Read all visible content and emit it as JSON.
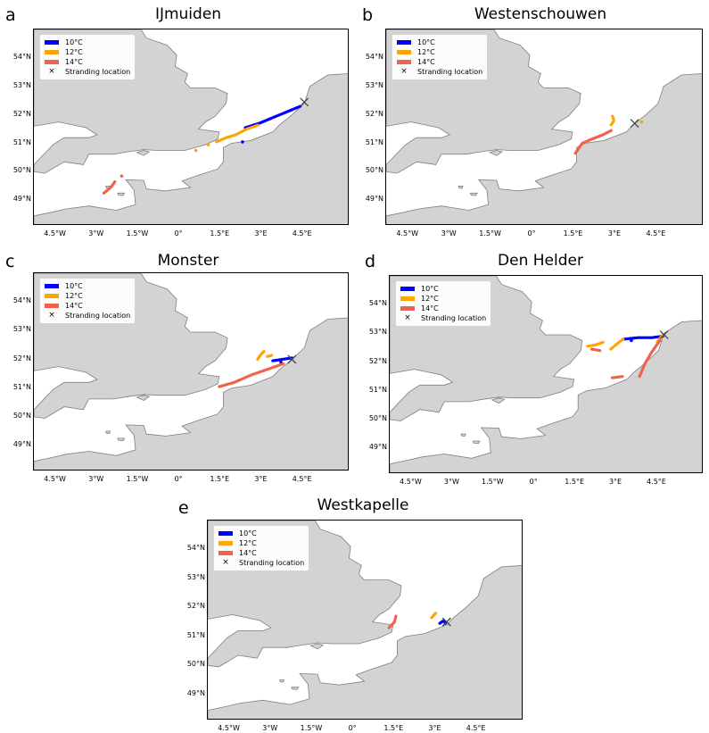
{
  "colors": {
    "land": "#d3d3d3",
    "sea": "#ffffff",
    "coast": "#7f7f7f",
    "c10": "#0000ff",
    "c12": "#ffa500",
    "c14": "#f0624c",
    "cross": "#444444"
  },
  "legend": {
    "t10": "10°C",
    "t12": "12°C",
    "t14": "14°C",
    "stranding": "Stranding location"
  },
  "axes": {
    "lon_labels": [
      "4.5°W",
      "3°W",
      "1.5°W",
      "0°",
      "1.5°E",
      "3°E",
      "4.5°E"
    ],
    "lat_labels": [
      "54°N",
      "53°N",
      "52°N",
      "51°N",
      "50°N",
      "49°N"
    ]
  },
  "panels": [
    {
      "letter": "a",
      "title": "IJmuiden",
      "stranding": {
        "lon": 4.55,
        "lat": 52.45
      },
      "particles": [
        {
          "temp": "10°C",
          "tracks": [
            [
              [
                2.4,
                51.55
              ],
              [
                2.9,
                51.7
              ],
              [
                3.4,
                51.9
              ],
              [
                3.9,
                52.1
              ],
              [
                4.4,
                52.3
              ]
            ]
          ],
          "blobs": [
            [
              2.3,
              51.05
            ]
          ]
        },
        {
          "temp": "12°C",
          "tracks": [
            [
              [
                1.35,
                51.05
              ],
              [
                1.7,
                51.2
              ],
              [
                2.05,
                51.3
              ],
              [
                2.45,
                51.5
              ],
              [
                2.9,
                51.65
              ]
            ]
          ],
          "blobs": [
            [
              1.05,
              50.95
            ],
            [
              0.6,
              50.75
            ]
          ]
        },
        {
          "temp": "14°C",
          "tracks": [
            [
              [
                -2.75,
                49.25
              ],
              [
                -2.5,
                49.45
              ],
              [
                -2.35,
                49.65
              ]
            ]
          ],
          "blobs": [
            [
              -2.1,
              49.85
            ]
          ]
        }
      ]
    },
    {
      "letter": "b",
      "title": "Westenschouwen",
      "stranding": {
        "lon": 3.7,
        "lat": 51.7
      },
      "particles": [
        {
          "temp": "12°C",
          "tracks": [
            [
              [
                2.85,
                51.65
              ],
              [
                2.95,
                51.8
              ],
              [
                2.9,
                51.95
              ]
            ]
          ],
          "blobs": [
            [
              3.95,
              51.75
            ]
          ]
        },
        {
          "temp": "14°C",
          "tracks": [
            [
              [
                1.55,
                50.65
              ],
              [
                1.8,
                51.0
              ],
              [
                2.15,
                51.15
              ],
              [
                2.55,
                51.3
              ],
              [
                2.85,
                51.45
              ]
            ]
          ],
          "blobs": []
        }
      ]
    },
    {
      "letter": "c",
      "title": "Monster",
      "stranding": {
        "lon": 4.1,
        "lat": 52.0
      },
      "particles": [
        {
          "temp": "10°C",
          "tracks": [
            [
              [
                3.4,
                51.95
              ],
              [
                3.75,
                52.0
              ],
              [
                4.1,
                52.05
              ]
            ]
          ],
          "blobs": [
            [
              3.7,
              51.9
            ]
          ]
        },
        {
          "temp": "12°C",
          "tracks": [
            [
              [
                2.85,
                52.0
              ],
              [
                2.95,
                52.15
              ],
              [
                3.1,
                52.3
              ]
            ],
            [
              [
                3.2,
                52.1
              ],
              [
                3.4,
                52.15
              ]
            ]
          ],
          "blobs": []
        },
        {
          "temp": "14°C",
          "tracks": [
            [
              [
                1.45,
                51.05
              ],
              [
                2.0,
                51.2
              ],
              [
                2.6,
                51.45
              ],
              [
                3.2,
                51.65
              ],
              [
                3.8,
                51.85
              ]
            ]
          ],
          "blobs": []
        }
      ]
    },
    {
      "letter": "d",
      "title": "Den Helder",
      "stranding": {
        "lon": 4.75,
        "lat": 52.95
      },
      "particles": [
        {
          "temp": "10°C",
          "tracks": [
            [
              [
                3.3,
                52.8
              ],
              [
                3.8,
                52.85
              ],
              [
                4.3,
                52.85
              ],
              [
                4.7,
                52.9
              ]
            ]
          ],
          "blobs": [
            [
              3.55,
              52.75
            ]
          ]
        },
        {
          "temp": "12°C",
          "tracks": [
            [
              [
                1.95,
                52.55
              ],
              [
                2.25,
                52.6
              ],
              [
                2.55,
                52.7
              ]
            ],
            [
              [
                2.8,
                52.45
              ],
              [
                3.05,
                52.65
              ],
              [
                3.25,
                52.8
              ]
            ],
            [
              [
                4.5,
                52.7
              ],
              [
                4.7,
                52.95
              ]
            ]
          ],
          "blobs": []
        },
        {
          "temp": "14°C",
          "tracks": [
            [
              [
                2.1,
                52.45
              ],
              [
                2.4,
                52.4
              ]
            ],
            [
              [
                3.85,
                51.5
              ],
              [
                4.05,
                51.95
              ],
              [
                4.3,
                52.35
              ],
              [
                4.6,
                52.75
              ]
            ],
            [
              [
                2.85,
                51.45
              ],
              [
                3.25,
                51.5
              ]
            ]
          ],
          "blobs": []
        }
      ]
    },
    {
      "letter": "e",
      "title": "Westkapelle",
      "stranding": {
        "lon": 3.4,
        "lat": 51.5
      },
      "particles": [
        {
          "temp": "10°C",
          "tracks": [
            [
              [
                3.15,
                51.45
              ],
              [
                3.3,
                51.55
              ],
              [
                3.35,
                51.45
              ]
            ]
          ],
          "blobs": []
        },
        {
          "temp": "12°C",
          "tracks": [
            [
              [
                2.85,
                51.65
              ],
              [
                3.0,
                51.8
              ]
            ]
          ],
          "blobs": []
        },
        {
          "temp": "14°C",
          "tracks": [
            [
              [
                1.3,
                51.3
              ],
              [
                1.5,
                51.5
              ],
              [
                1.55,
                51.7
              ]
            ]
          ],
          "blobs": []
        }
      ]
    }
  ]
}
